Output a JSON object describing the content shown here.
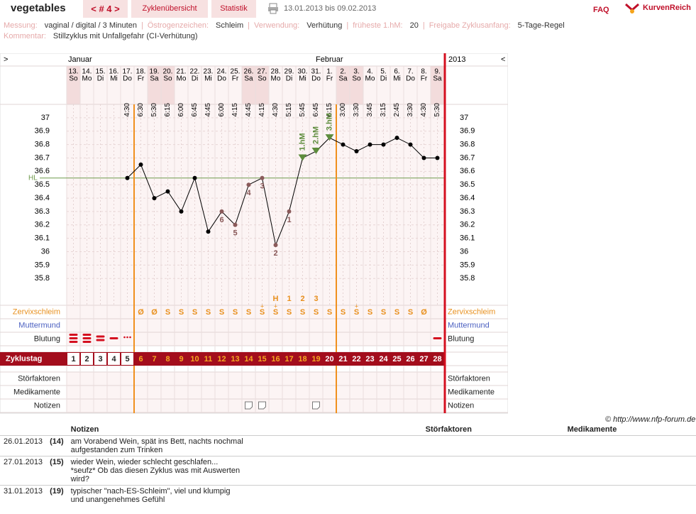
{
  "header": {
    "user": "vegetables",
    "cycle_nav": "< # 4 >",
    "tabs": [
      "Zyklenübersicht",
      "Statistik"
    ],
    "date_range": "13.01.2013 bis 09.02.2013",
    "faq": "FAQ",
    "brand": "KurvenReich"
  },
  "info": {
    "items": [
      {
        "label": "Messung:",
        "value": "vaginal / digital / 3 Minuten"
      },
      {
        "label": "Östrogenzeichen:",
        "value": "Schleim"
      },
      {
        "label": "Verwendung:",
        "value": "Verhütung"
      },
      {
        "label": "früheste 1.hM:",
        "value": "20"
      },
      {
        "label": "Freigabe Zyklusanfang:",
        "value": "5-Tage-Regel"
      }
    ],
    "separator": "|",
    "comment": {
      "label": "Kommentar:",
      "value": "Stillzyklus mit Unfallgefahr (CI-Verhütung)"
    }
  },
  "chart_data": {
    "type": "line",
    "nav_prev": ">",
    "nav_next": "<",
    "months": [
      "Januar",
      "Februar"
    ],
    "year": "2013",
    "categories": [
      "13.",
      "14.",
      "15.",
      "16.",
      "17.",
      "18.",
      "19.",
      "20.",
      "21.",
      "22.",
      "23.",
      "24.",
      "25.",
      "26.",
      "27.",
      "28.",
      "29.",
      "30.",
      "31.",
      "1.",
      "2.",
      "3.",
      "4.",
      "5.",
      "6.",
      "7.",
      "8.",
      "9."
    ],
    "weekdays": [
      "So",
      "Mo",
      "Di",
      "Mi",
      "Do",
      "Fr",
      "Sa",
      "So",
      "Mo",
      "Di",
      "Mi",
      "Do",
      "Fr",
      "Sa",
      "So",
      "Mo",
      "Di",
      "Mi",
      "Do",
      "Fr",
      "Sa",
      "So",
      "Mo",
      "Di",
      "Mi",
      "Do",
      "Fr",
      "Sa"
    ],
    "times": [
      null,
      null,
      null,
      null,
      "4:30",
      "6:30",
      "5:30",
      "6:15",
      "6:00",
      "6:45",
      "4:45",
      "6:00",
      "4:15",
      "4:45",
      "4:15",
      "4:30",
      "5:15",
      "5:45",
      "6:45",
      "6:15",
      "3:00",
      "3:30",
      "3:45",
      "3:15",
      "2:45",
      "3:30",
      "4:30",
      "5:30"
    ],
    "values": [
      null,
      null,
      null,
      null,
      36.55,
      36.65,
      36.4,
      36.45,
      36.3,
      36.55,
      36.15,
      36.3,
      36.2,
      36.5,
      36.55,
      36.05,
      36.3,
      36.7,
      36.75,
      36.85,
      36.8,
      36.75,
      36.8,
      36.8,
      36.85,
      36.8,
      36.7,
      36.7
    ],
    "color": "#000000",
    "low_labels": [
      null,
      null,
      null,
      null,
      null,
      null,
      null,
      null,
      null,
      null,
      null,
      6,
      5,
      4,
      3,
      2,
      1,
      null,
      null,
      null,
      null,
      null,
      null,
      null,
      null,
      null,
      null,
      null
    ],
    "hm_labels": [
      null,
      null,
      null,
      null,
      null,
      null,
      null,
      null,
      null,
      null,
      null,
      null,
      null,
      null,
      null,
      null,
      null,
      "1.hM",
      "2.hM",
      "3.hM",
      null,
      null,
      null,
      null,
      null,
      null,
      null,
      null
    ],
    "peak_labels": [
      null,
      null,
      null,
      null,
      null,
      null,
      null,
      null,
      null,
      null,
      null,
      null,
      null,
      null,
      null,
      "H",
      1,
      2,
      3,
      null,
      null,
      null,
      null,
      null,
      null,
      null,
      null,
      null
    ],
    "cervix": [
      null,
      null,
      null,
      null,
      null,
      "Ø",
      "Ø",
      "S",
      "S",
      "S",
      "S",
      "S",
      "S",
      "S",
      "S",
      "S",
      "S",
      "S",
      "S",
      "S",
      "S",
      "S",
      "S",
      "S",
      "S",
      "S",
      "Ø",
      null
    ],
    "cervix_above": [
      null,
      null,
      null,
      null,
      null,
      null,
      null,
      null,
      null,
      null,
      null,
      null,
      null,
      null,
      "+",
      "+",
      null,
      null,
      null,
      null,
      null,
      "+",
      null,
      null,
      null,
      null,
      null,
      null
    ],
    "cycle_days": [
      1,
      2,
      3,
      4,
      5,
      6,
      7,
      8,
      9,
      10,
      11,
      12,
      13,
      14,
      15,
      16,
      17,
      18,
      19,
      20,
      21,
      22,
      23,
      24,
      25,
      26,
      27,
      28
    ],
    "ylim": [
      35.6,
      37.1
    ],
    "yticks": [
      35.8,
      35.9,
      36,
      36.1,
      36.2,
      36.3,
      36.4,
      36.5,
      36.6,
      36.7,
      36.8,
      36.9,
      37
    ],
    "grid": true,
    "hl": {
      "label": "HL",
      "value": 36.55,
      "color": "#6f9a4c"
    },
    "row_labels": {
      "cervix": "Zervixschleim",
      "cervix_os": "Muttermund",
      "bleeding": "Blutung",
      "cycle_day": "Zyklustag",
      "disturbances": "Störfaktoren",
      "medication": "Medikamente",
      "notes": "Notizen"
    }
  },
  "footer": {
    "copyright": "© http://www.nfp-forum.de",
    "columns": [
      "Notizen",
      "Störfaktoren",
      "Medikamente"
    ],
    "rows": [
      {
        "date": "26.01.2013",
        "day": "(14)",
        "note": "am Vorabend Wein, spät ins Bett, nachts nochmal aufgestanden zum Trinken"
      },
      {
        "date": "27.01.2013",
        "day": "(15)",
        "note": "wieder Wein, wieder schlecht geschlafen... *seufz* Ob das diesen Zyklus was mit Auswerten wird?"
      },
      {
        "date": "31.01.2013",
        "day": "(19)",
        "note": "typischer \"nach-ES-Schleim\", viel und klumpig und unangenehmes Gefühl"
      }
    ]
  }
}
